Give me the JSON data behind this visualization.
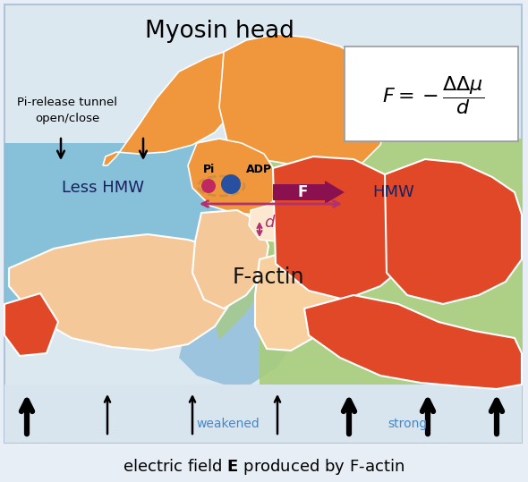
{
  "title": "Myosin head",
  "bg_color": "#dce8f0",
  "blue_region_color": "#7abcd6",
  "green_region_color": "#a8cc78",
  "orange_myosin_color": "#f0963c",
  "red_actin_color": "#e04828",
  "light_orange_color": "#f5c89a",
  "light_orange2_color": "#f8dbb8",
  "text_weakened_color": "#4488cc",
  "text_strong_color": "#4488cc",
  "formula_box_color": "#ffffff",
  "d_arrow_color": "#b03070",
  "F_arrow_color": "#8b1050",
  "pi_dot_color": "#c02860",
  "adp_dot_color": "#2850a0",
  "tunnel_dashes_color": "#c89040",
  "pi_label": "Pi",
  "adp_label": "ADP",
  "less_hmw_label": "Less HMW",
  "hmw_label": "HMW",
  "factin_label": "F-actin",
  "pi_release_label": "Pi-release tunnel\nopen/close",
  "weakened_label": "weakened",
  "strong_label": "strong",
  "bottom_text": "electric field ",
  "bottom_E": "E",
  "bottom_text2": " produced by F-actin",
  "fig_bg": "#e8eef5"
}
